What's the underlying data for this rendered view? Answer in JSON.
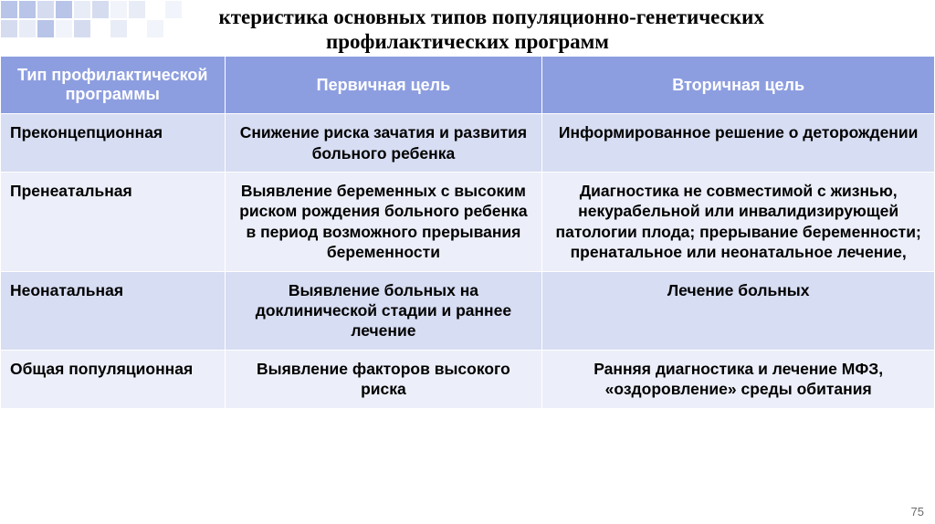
{
  "title": "Характеристика основных типов популяционно-генетических профилактических программ",
  "slide_number": "75",
  "table": {
    "header_bg": "#8d9ee0",
    "row_bg_alt": "#d7ddf2",
    "row_bg": "#eceff9",
    "col_widths": [
      "24%",
      "34%",
      "42%"
    ],
    "columns": [
      "Тип профилактической программы",
      "Первичная цель",
      "Вторичная цель"
    ],
    "rows": [
      {
        "type": "Преконцепционная",
        "primary": "Снижение риска зачатия и развития больного ребенка",
        "secondary": "Информированное решение о деторождении"
      },
      {
        "type": "Пренеатальная",
        "primary": "Выявление беременных с высоким риском рождения больного ребенка в период возможного прерывания беременности",
        "secondary": "Диагностика  не совместимой с жизнью, некурабельной или инвалидизирующей патологии плода; прерывание беременности; пренатальное или неонатальное лечение,"
      },
      {
        "type": "Неонатальная",
        "primary": "Выявление больных на доклинической стадии и раннее лечение",
        "secondary": "Лечение больных"
      },
      {
        "type": "Общая популяционная",
        "primary": "Выявление факторов высокого риска",
        "secondary": "Ранняя диагностика и лечение МФЗ, «оздоровление» среды обитания"
      }
    ]
  },
  "decorative": {
    "palette": [
      "#b8c4e8",
      "#d5dcf0",
      "#e8ecf7",
      "#f2f4fb",
      "#ffffff"
    ]
  }
}
